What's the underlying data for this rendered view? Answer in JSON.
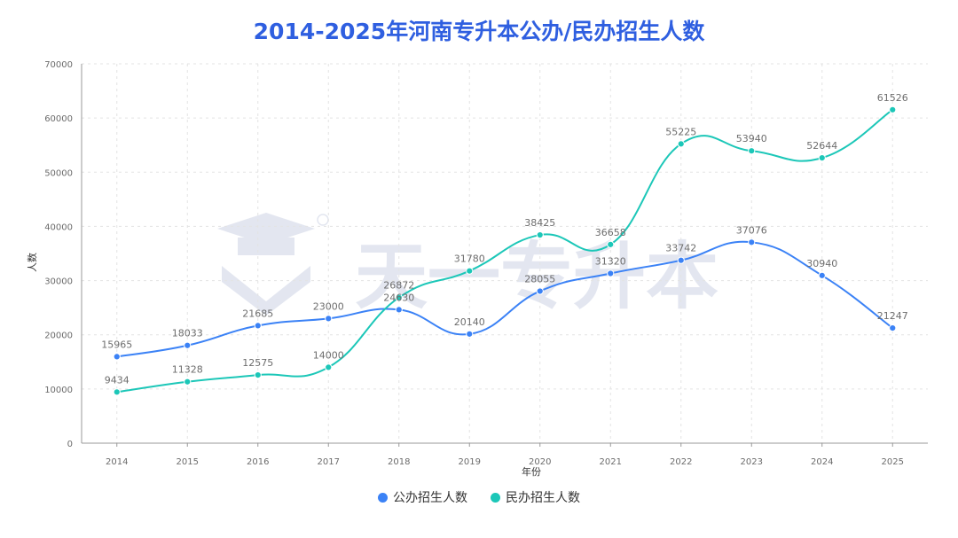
{
  "chart_data": {
    "type": "line",
    "title": "2014-2025年河南专升本公办/民办招生人数",
    "xlabel": "年份",
    "ylabel": "人数",
    "categories": [
      "2014",
      "2015",
      "2016",
      "2017",
      "2018",
      "2019",
      "2020",
      "2021",
      "2022",
      "2023",
      "2024",
      "2025"
    ],
    "y_ticks": [
      "0",
      "10000",
      "20000",
      "30000",
      "40000",
      "50000",
      "60000",
      "70000"
    ],
    "ylim": [
      0,
      70000
    ],
    "grid": true,
    "legend_position": "bottom",
    "series": [
      {
        "name": "公办招生人数",
        "color": "#3b82f6",
        "values": [
          15965,
          18033,
          21685,
          23000,
          24630,
          20140,
          28055,
          31320,
          33742,
          37076,
          30940,
          21247
        ],
        "labels": [
          "15965",
          "18033",
          "21685",
          "23000",
          "24630",
          "20140",
          "28055",
          "31320",
          "33742",
          "37076",
          "30940",
          "21247"
        ]
      },
      {
        "name": "民办招生人数",
        "color": "#1cc7b8",
        "values": [
          9434,
          11328,
          12575,
          14000,
          26872,
          31780,
          38425,
          36658,
          55225,
          53940,
          52644,
          61526
        ],
        "labels": [
          "9434",
          "11328",
          "12575",
          "14000",
          "26872",
          "31780",
          "38425",
          "36658",
          "55225",
          "53940",
          "52644",
          "61526"
        ]
      }
    ]
  },
  "watermark": {
    "logo_icon": "graduation-cap-logo-icon",
    "text": "天一专升本"
  }
}
